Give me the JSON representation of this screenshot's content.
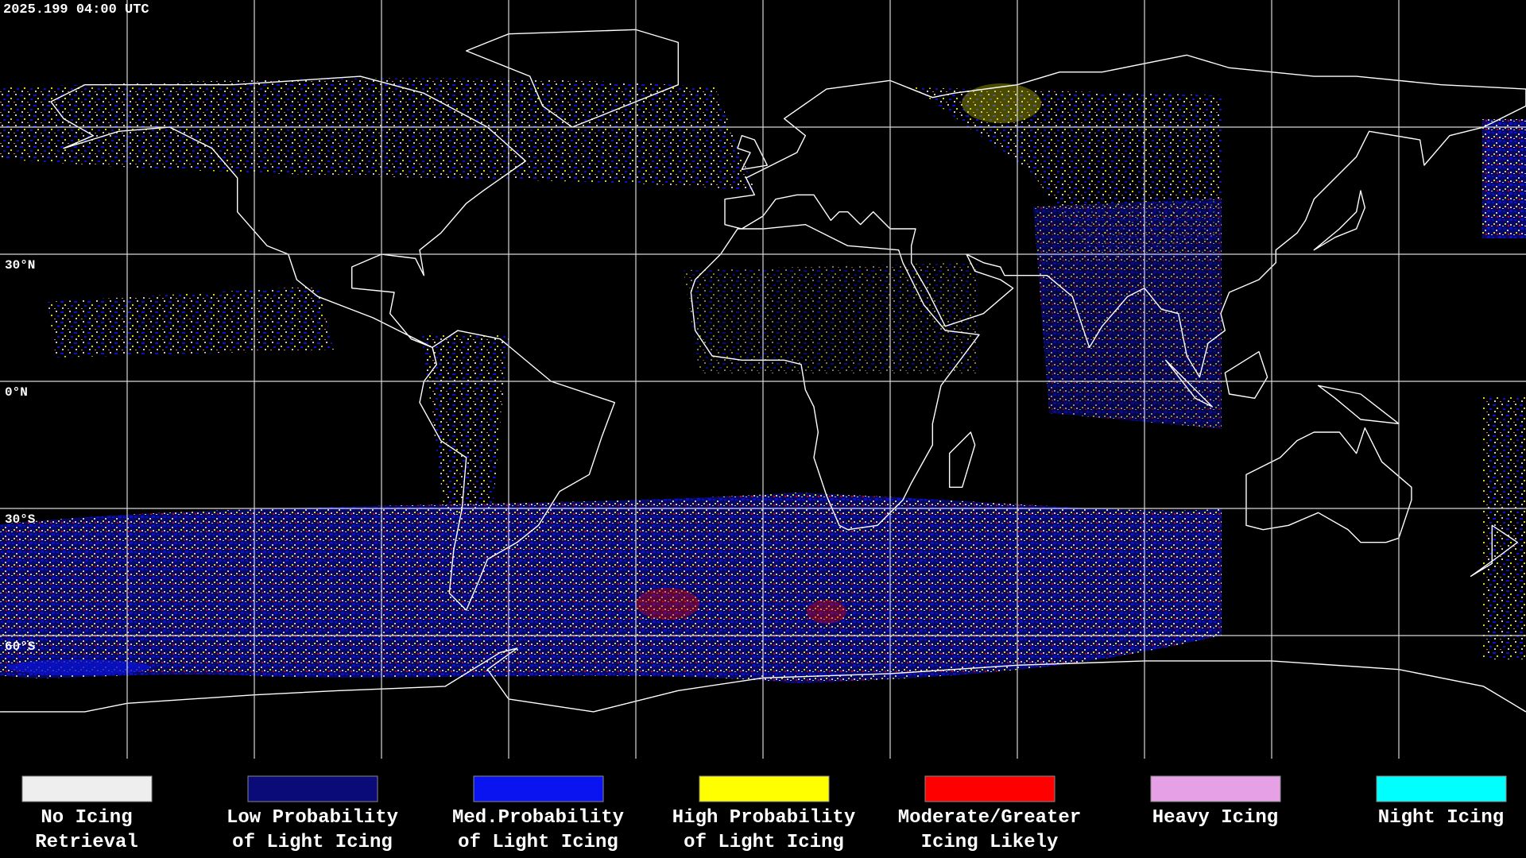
{
  "header": {
    "timestamp": "2025.199 04:00 UTC"
  },
  "map": {
    "latitude_labels": [
      "30°N",
      "0°N",
      "30°S",
      "60°S"
    ]
  },
  "legend": {
    "items": [
      {
        "label": [
          "No Icing",
          "Retrieval"
        ],
        "color": "#eeeeee"
      },
      {
        "label": [
          "Low Probability",
          "of Light Icing"
        ],
        "color": "#0a0a78"
      },
      {
        "label": [
          "Med.Probability",
          "of Light Icing"
        ],
        "color": "#0a14f0"
      },
      {
        "label": [
          "High Probability",
          "of Light Icing"
        ],
        "color": "#ffff00"
      },
      {
        "label": [
          "Moderate/Greater",
          "Icing Likely"
        ],
        "color": "#ff0000"
      },
      {
        "label": [
          "Heavy Icing"
        ],
        "color": "#e6a0e6"
      },
      {
        "label": [
          "Night Icing"
        ],
        "color": "#00ffff"
      }
    ]
  }
}
